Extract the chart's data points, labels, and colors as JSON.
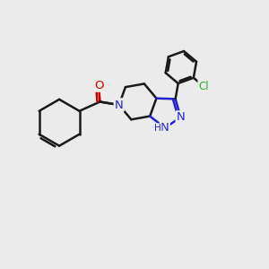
{
  "background_color": "#ebebeb",
  "bond_color": "#1a1a1a",
  "bond_width": 1.8,
  "atom_colors": {
    "N": "#2222cc",
    "O": "#cc0000",
    "Cl": "#33aa33",
    "H": "#2222cc",
    "C": "#1a1a1a"
  },
  "font_size": 8.5,
  "fig_size": [
    3.0,
    3.0
  ],
  "dpi": 100,
  "xlim": [
    0,
    10
  ],
  "ylim": [
    0,
    10
  ]
}
